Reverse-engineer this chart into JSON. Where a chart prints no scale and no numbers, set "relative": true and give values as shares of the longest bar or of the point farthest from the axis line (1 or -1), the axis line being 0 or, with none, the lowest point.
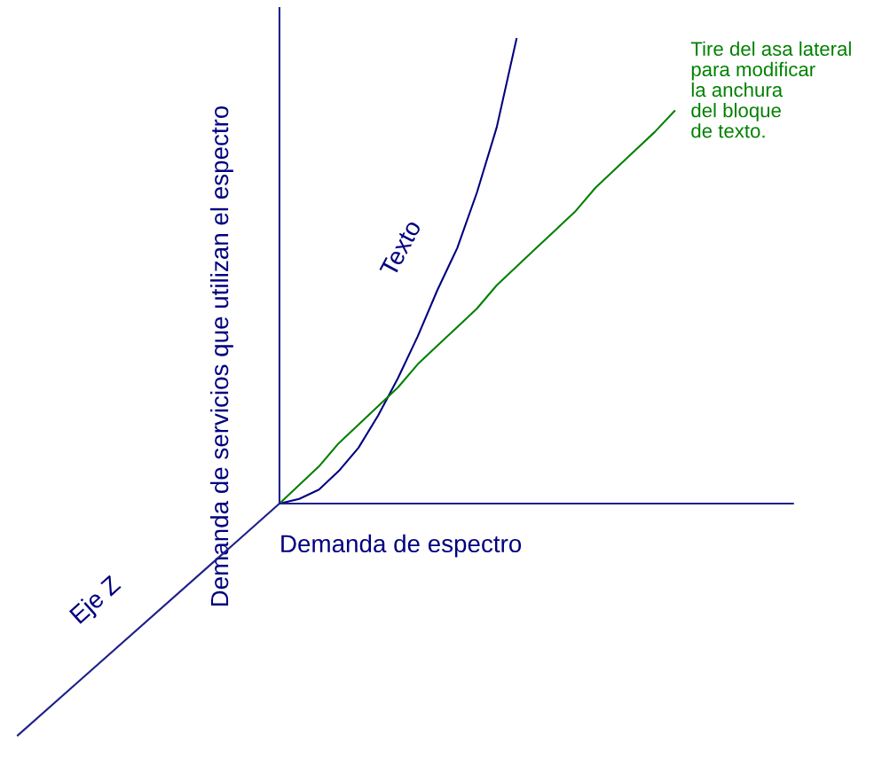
{
  "chart_data": {
    "type": "line",
    "relative": true,
    "xlabel": "Demanda de espectro",
    "ylabel": "Demanda de servicios que utilizan el espectro",
    "categories": [
      null,
      null,
      null,
      null,
      null,
      null,
      null,
      null,
      null,
      null,
      null,
      null,
      null,
      null,
      null,
      null,
      null,
      null,
      null,
      null,
      null,
      null,
      null,
      null,
      null,
      null,
      null
    ],
    "series": [
      {
        "color": "#000080",
        "values": [
          0,
          0.01,
          0.03,
          0.07,
          0.12,
          0.19,
          0.27,
          0.36,
          0.46,
          0.55,
          0.67,
          0.81,
          1,
          null,
          null,
          null,
          null,
          null,
          null,
          null,
          null,
          null,
          null,
          null,
          null,
          null,
          null
        ]
      },
      {
        "color": "#008000",
        "values": [
          0,
          0.04,
          0.08,
          0.13,
          0.17,
          0.21,
          0.25,
          0.3,
          0.34,
          0.38,
          0.42,
          0.47,
          0.51,
          0.55,
          0.59,
          0.63,
          0.68,
          0.72,
          0.76,
          0.8,
          0.845,
          null,
          null,
          null,
          null,
          null,
          null
        ]
      }
    ],
    "annotations": [
      "Texto",
      "Eje Z",
      "Tire del asa lateral\npara modificar\nla anchura\ndel bloque\nde texto."
    ],
    "tick_labels": false,
    "legend": false,
    "marker": "none",
    "line_style": "solid"
  }
}
